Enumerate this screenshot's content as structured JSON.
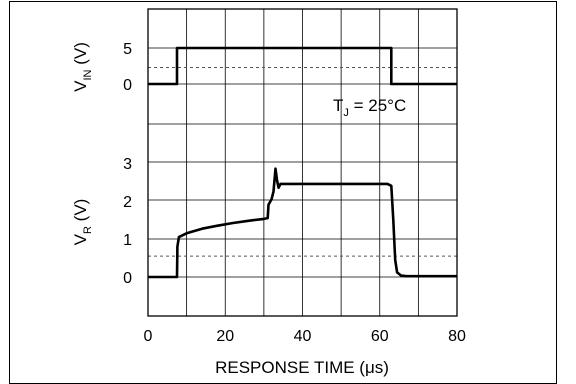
{
  "chart_data": [
    {
      "type": "line",
      "panel": "input",
      "ylabel_main": "V",
      "ylabel_sub": "IN",
      "ylabel_unit": " (V)",
      "yticks": [
        0,
        5
      ],
      "ylim": [
        -1.5,
        6.2
      ],
      "annotation_main": "T",
      "annotation_sub": "J",
      "annotation_rest": " = 25°C",
      "dashed_level": 2.3,
      "series": [
        {
          "x": [
            0,
            7.5,
            7.5,
            63,
            63,
            80
          ],
          "y": [
            0,
            0,
            5,
            5,
            0,
            0
          ]
        }
      ]
    },
    {
      "type": "line",
      "panel": "response",
      "ylabel_main": "V",
      "ylabel_sub": "R",
      "ylabel_unit": " (V)",
      "yticks": [
        0,
        1,
        2,
        3
      ],
      "ylim": [
        -1.1,
        3.35
      ],
      "dashed_level": 0.55,
      "xlabel": "RESPONSE TIME (μs)",
      "xticks": [
        0,
        20,
        40,
        60,
        80
      ],
      "xlim": [
        0,
        80
      ],
      "grid": true,
      "series": [
        {
          "x": [
            0,
            7.5,
            7.6,
            8,
            10,
            14,
            18,
            22,
            26,
            30,
            31,
            31.2,
            32,
            32.5,
            33,
            33.4,
            33.8,
            34.3,
            35,
            36,
            40,
            50,
            62,
            63,
            63.5,
            64,
            64.5,
            65.5,
            67,
            80
          ],
          "y": [
            0,
            0,
            0.8,
            1.05,
            1.15,
            1.27,
            1.35,
            1.42,
            1.48,
            1.53,
            1.55,
            1.9,
            2.05,
            2.25,
            2.85,
            2.55,
            2.35,
            2.45,
            2.45,
            2.45,
            2.45,
            2.45,
            2.45,
            2.4,
            1.5,
            0.45,
            0.12,
            0.04,
            0.02,
            0.02
          ]
        }
      ]
    }
  ]
}
